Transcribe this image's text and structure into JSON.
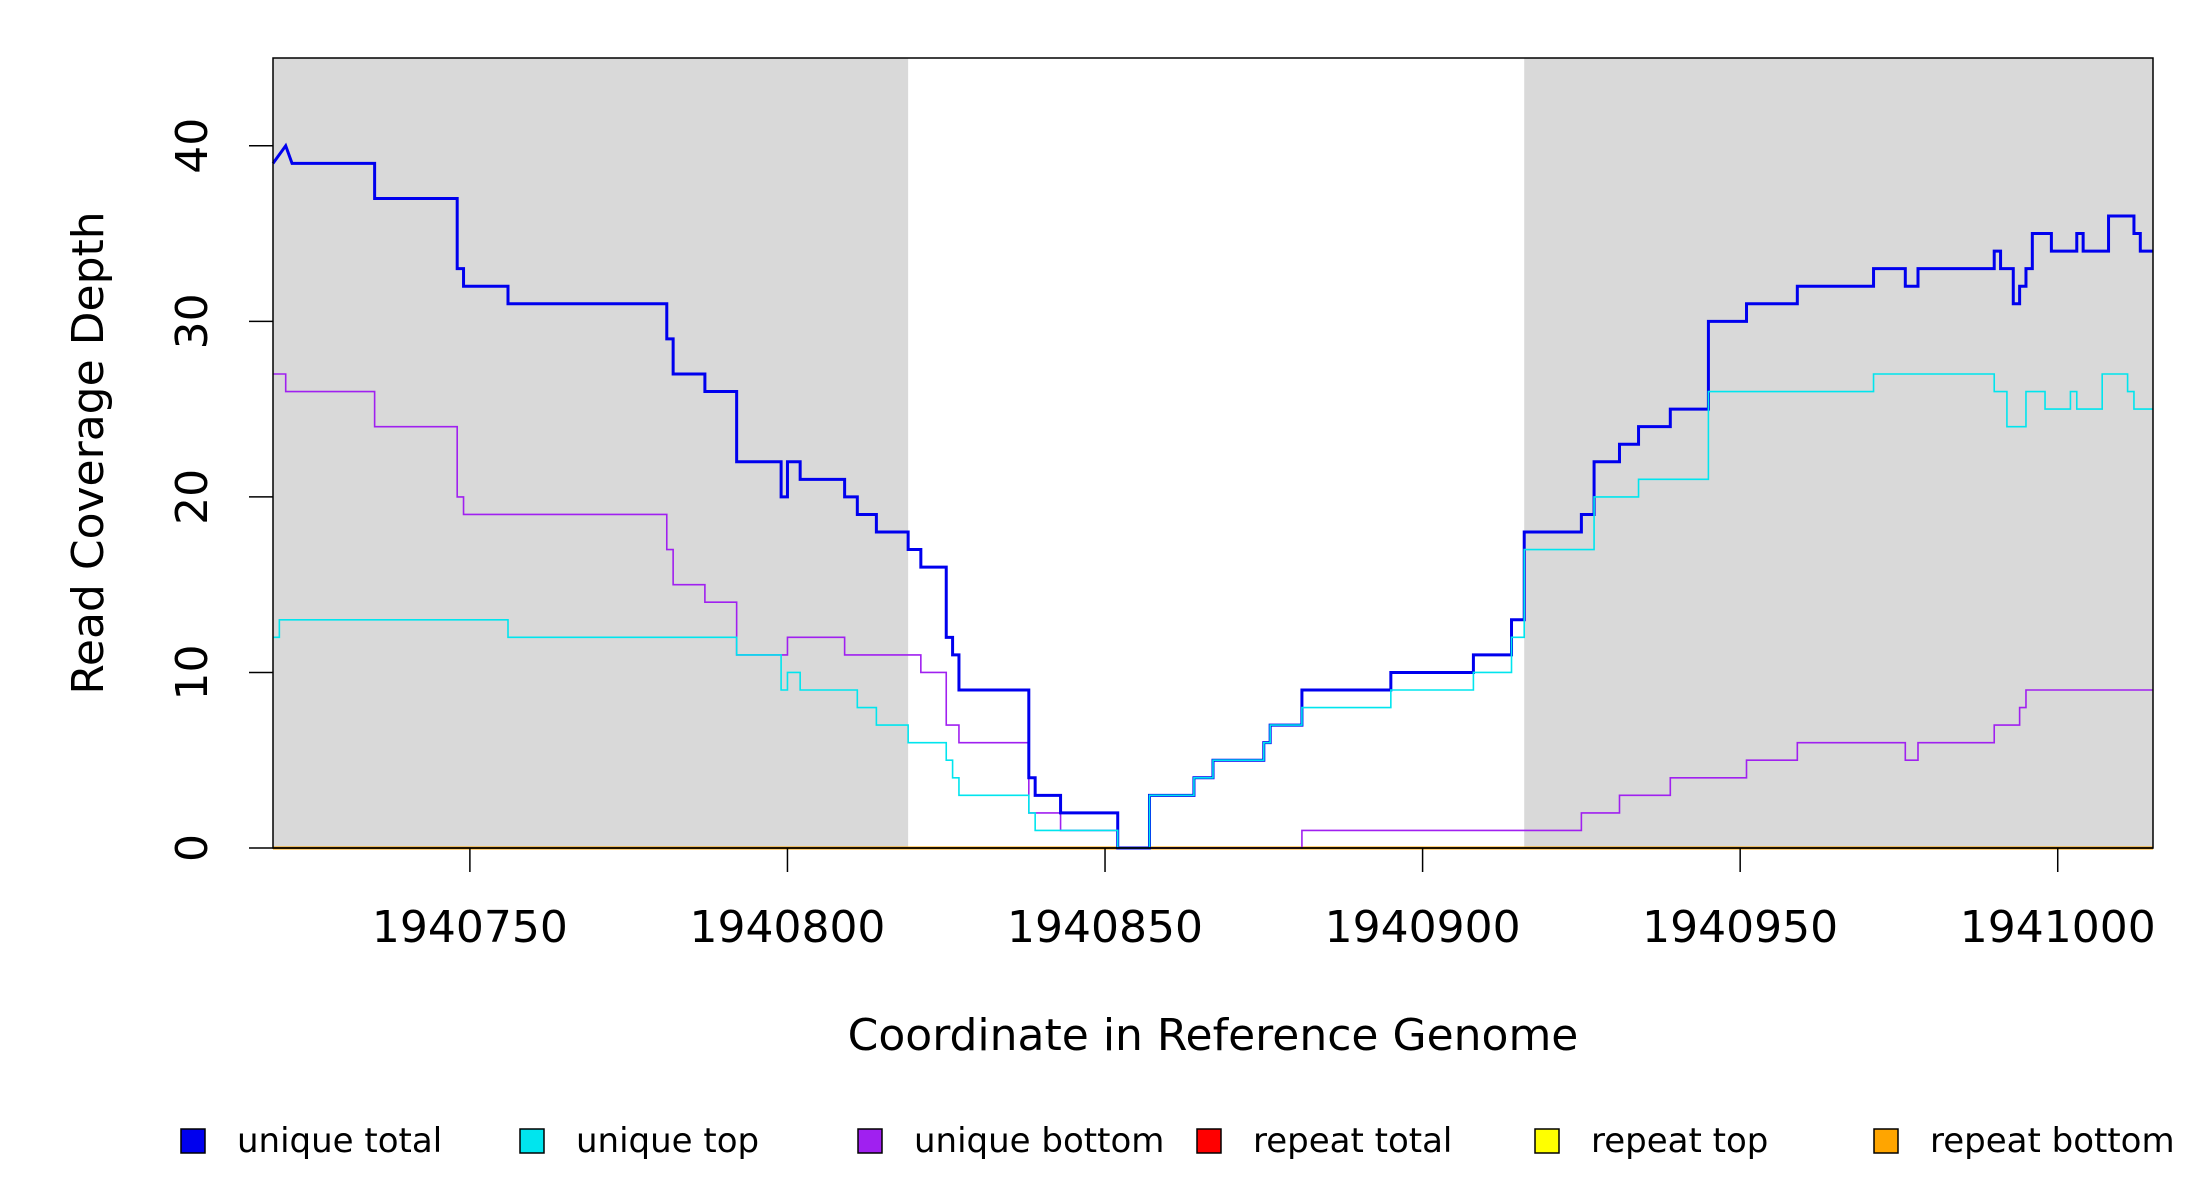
{
  "chart_data": {
    "type": "line",
    "title": "",
    "xlabel": "Coordinate in Reference Genome",
    "ylabel": "Read Coverage Depth",
    "xlim": [
      1940719,
      1941015
    ],
    "ylim": [
      0,
      45
    ],
    "x_ticks": [
      1940750,
      1940800,
      1940850,
      1940900,
      1940950,
      1941000
    ],
    "x_tick_labels": [
      "1940750",
      "1940800",
      "1940850",
      "1940900",
      "1940950",
      "1941000"
    ],
    "y_ticks": [
      0,
      10,
      20,
      30,
      40
    ],
    "y_tick_labels": [
      "0",
      "10",
      "20",
      "30",
      "40"
    ],
    "shaded_regions": [
      {
        "x": [
          1940719,
          1940819
        ],
        "color": "#d9d9d9"
      },
      {
        "x": [
          1940916,
          1941015
        ],
        "color": "#d9d9d9"
      }
    ],
    "grid": false,
    "legend_position": "bottom",
    "series": [
      {
        "name": "unique total",
        "color": "#0000ee",
        "points": [
          [
            1940719,
            39
          ],
          [
            1940721,
            40
          ],
          [
            1940721,
            40
          ],
          [
            1940722,
            39
          ],
          [
            1940735,
            39
          ],
          [
            1940735,
            37
          ],
          [
            1940748,
            37
          ],
          [
            1940748,
            33
          ],
          [
            1940749,
            33
          ],
          [
            1940749,
            32
          ],
          [
            1940756,
            32
          ],
          [
            1940756,
            31
          ],
          [
            1940781,
            31
          ],
          [
            1940781,
            29
          ],
          [
            1940782,
            29
          ],
          [
            1940782,
            27
          ],
          [
            1940787,
            27
          ],
          [
            1940787,
            26
          ],
          [
            1940792,
            26
          ],
          [
            1940792,
            22
          ],
          [
            1940799,
            22
          ],
          [
            1940799,
            20
          ],
          [
            1940800,
            20
          ],
          [
            1940800,
            22
          ],
          [
            1940802,
            22
          ],
          [
            1940802,
            21
          ],
          [
            1940809,
            21
          ],
          [
            1940809,
            20
          ],
          [
            1940811,
            20
          ],
          [
            1940811,
            19
          ],
          [
            1940814,
            19
          ],
          [
            1940814,
            18
          ],
          [
            1940819,
            18
          ],
          [
            1940819,
            17
          ],
          [
            1940821,
            17
          ],
          [
            1940821,
            16
          ],
          [
            1940825,
            16
          ],
          [
            1940825,
            12
          ],
          [
            1940826,
            12
          ],
          [
            1940826,
            11
          ],
          [
            1940827,
            11
          ],
          [
            1940827,
            9
          ],
          [
            1940838,
            9
          ],
          [
            1940838,
            4
          ],
          [
            1940839,
            4
          ],
          [
            1940839,
            3
          ],
          [
            1940843,
            3
          ],
          [
            1940843,
            2
          ],
          [
            1940852,
            2
          ],
          [
            1940852,
            0
          ],
          [
            1940857,
            0
          ],
          [
            1940857,
            3
          ],
          [
            1940864,
            3
          ],
          [
            1940864,
            4
          ],
          [
            1940867,
            4
          ],
          [
            1940867,
            5
          ],
          [
            1940875,
            5
          ],
          [
            1940875,
            6
          ],
          [
            1940876,
            6
          ],
          [
            1940876,
            7
          ],
          [
            1940881,
            7
          ],
          [
            1940881,
            9
          ],
          [
            1940895,
            9
          ],
          [
            1940895,
            10
          ],
          [
            1940908,
            10
          ],
          [
            1940908,
            11
          ],
          [
            1940914,
            11
          ],
          [
            1940914,
            13
          ],
          [
            1940916,
            13
          ],
          [
            1940916,
            18
          ],
          [
            1940925,
            18
          ],
          [
            1940925,
            19
          ],
          [
            1940927,
            19
          ],
          [
            1940927,
            22
          ],
          [
            1940931,
            22
          ],
          [
            1940931,
            23
          ],
          [
            1940934,
            23
          ],
          [
            1940934,
            24
          ],
          [
            1940939,
            24
          ],
          [
            1940939,
            25
          ],
          [
            1940945,
            25
          ],
          [
            1940945,
            30
          ],
          [
            1940951,
            30
          ],
          [
            1940951,
            31
          ],
          [
            1940959,
            31
          ],
          [
            1940959,
            32
          ],
          [
            1940971,
            32
          ],
          [
            1940971,
            33
          ],
          [
            1940976,
            33
          ],
          [
            1940976,
            32
          ],
          [
            1940978,
            32
          ],
          [
            1940978,
            33
          ],
          [
            1940990,
            33
          ],
          [
            1940990,
            34
          ],
          [
            1940991,
            34
          ],
          [
            1940991,
            33
          ],
          [
            1940993,
            33
          ],
          [
            1940993,
            31
          ],
          [
            1940994,
            31
          ],
          [
            1940994,
            32
          ],
          [
            1940995,
            32
          ],
          [
            1940995,
            33
          ],
          [
            1940996,
            33
          ],
          [
            1940996,
            35
          ],
          [
            1940999,
            35
          ],
          [
            1940999,
            34
          ],
          [
            1941003,
            34
          ],
          [
            1941003,
            35
          ],
          [
            1941004,
            35
          ],
          [
            1941004,
            34
          ],
          [
            1941008,
            34
          ],
          [
            1941008,
            36
          ],
          [
            1941012,
            36
          ],
          [
            1941012,
            35
          ],
          [
            1941013,
            35
          ],
          [
            1941013,
            34
          ],
          [
            1941015,
            34
          ]
        ]
      },
      {
        "name": "unique top",
        "color": "#00e5ee",
        "points": [
          [
            1940719,
            12
          ],
          [
            1940720,
            12
          ],
          [
            1940720,
            13
          ],
          [
            1940756,
            13
          ],
          [
            1940756,
            12
          ],
          [
            1940792,
            12
          ],
          [
            1940792,
            11
          ],
          [
            1940799,
            11
          ],
          [
            1940799,
            9
          ],
          [
            1940800,
            9
          ],
          [
            1940800,
            10
          ],
          [
            1940802,
            10
          ],
          [
            1940802,
            9
          ],
          [
            1940811,
            9
          ],
          [
            1940811,
            8
          ],
          [
            1940814,
            8
          ],
          [
            1940814,
            7
          ],
          [
            1940819,
            7
          ],
          [
            1940819,
            6
          ],
          [
            1940825,
            6
          ],
          [
            1940825,
            5
          ],
          [
            1940826,
            5
          ],
          [
            1940826,
            4
          ],
          [
            1940827,
            4
          ],
          [
            1940827,
            3
          ],
          [
            1940838,
            3
          ],
          [
            1940838,
            2
          ],
          [
            1940839,
            2
          ],
          [
            1940839,
            1
          ],
          [
            1940843,
            1
          ],
          [
            1940843,
            1
          ],
          [
            1940852,
            1
          ],
          [
            1940852,
            0
          ],
          [
            1940857,
            0
          ],
          [
            1940857,
            3
          ],
          [
            1940864,
            3
          ],
          [
            1940864,
            4
          ],
          [
            1940867,
            4
          ],
          [
            1940867,
            5
          ],
          [
            1940875,
            5
          ],
          [
            1940875,
            6
          ],
          [
            1940876,
            6
          ],
          [
            1940876,
            7
          ],
          [
            1940881,
            7
          ],
          [
            1940881,
            8
          ],
          [
            1940895,
            8
          ],
          [
            1940895,
            9
          ],
          [
            1940908,
            9
          ],
          [
            1940908,
            10
          ],
          [
            1940914,
            10
          ],
          [
            1940914,
            12
          ],
          [
            1940916,
            12
          ],
          [
            1940916,
            17
          ],
          [
            1940927,
            17
          ],
          [
            1940927,
            20
          ],
          [
            1940934,
            20
          ],
          [
            1940934,
            21
          ],
          [
            1940945,
            21
          ],
          [
            1940945,
            26
          ],
          [
            1940971,
            26
          ],
          [
            1940971,
            27
          ],
          [
            1940990,
            27
          ],
          [
            1940990,
            26
          ],
          [
            1940992,
            26
          ],
          [
            1940992,
            24
          ],
          [
            1940995,
            24
          ],
          [
            1940995,
            26
          ],
          [
            1940998,
            26
          ],
          [
            1940998,
            25
          ],
          [
            1941002,
            25
          ],
          [
            1941002,
            26
          ],
          [
            1941003,
            26
          ],
          [
            1941003,
            25
          ],
          [
            1941007,
            25
          ],
          [
            1941007,
            27
          ],
          [
            1941011,
            27
          ],
          [
            1941011,
            26
          ],
          [
            1941012,
            26
          ],
          [
            1941012,
            25
          ],
          [
            1941015,
            25
          ]
        ]
      },
      {
        "name": "unique bottom",
        "color": "#a020f0",
        "points": [
          [
            1940719,
            27
          ],
          [
            1940721,
            27
          ],
          [
            1940721,
            26
          ],
          [
            1940735,
            26
          ],
          [
            1940735,
            24
          ],
          [
            1940748,
            24
          ],
          [
            1940748,
            20
          ],
          [
            1940749,
            20
          ],
          [
            1940749,
            19
          ],
          [
            1940781,
            19
          ],
          [
            1940781,
            17
          ],
          [
            1940782,
            17
          ],
          [
            1940782,
            15
          ],
          [
            1940787,
            15
          ],
          [
            1940787,
            14
          ],
          [
            1940792,
            14
          ],
          [
            1940792,
            11
          ],
          [
            1940800,
            11
          ],
          [
            1940800,
            12
          ],
          [
            1940809,
            12
          ],
          [
            1940809,
            11
          ],
          [
            1940821,
            11
          ],
          [
            1940821,
            10
          ],
          [
            1940825,
            10
          ],
          [
            1940825,
            7
          ],
          [
            1940827,
            7
          ],
          [
            1940827,
            6
          ],
          [
            1940838,
            6
          ],
          [
            1940838,
            2
          ],
          [
            1940843,
            2
          ],
          [
            1940843,
            1
          ],
          [
            1940852,
            1
          ],
          [
            1940852,
            0
          ],
          [
            1940881,
            0
          ],
          [
            1940881,
            1
          ],
          [
            1940925,
            1
          ],
          [
            1940925,
            2
          ],
          [
            1940931,
            2
          ],
          [
            1940931,
            3
          ],
          [
            1940939,
            3
          ],
          [
            1940939,
            4
          ],
          [
            1940951,
            4
          ],
          [
            1940951,
            5
          ],
          [
            1940959,
            5
          ],
          [
            1940959,
            6
          ],
          [
            1940976,
            6
          ],
          [
            1940976,
            5
          ],
          [
            1940978,
            5
          ],
          [
            1940978,
            6
          ],
          [
            1940990,
            6
          ],
          [
            1940990,
            7
          ],
          [
            1940994,
            7
          ],
          [
            1940994,
            8
          ],
          [
            1940995,
            8
          ],
          [
            1940995,
            9
          ],
          [
            1941015,
            9
          ]
        ]
      },
      {
        "name": "repeat total",
        "color": "#ff0000",
        "points": [
          [
            1940719,
            0
          ],
          [
            1941015,
            0
          ]
        ]
      },
      {
        "name": "repeat top",
        "color": "#ffff00",
        "points": [
          [
            1940719,
            0
          ],
          [
            1941015,
            0
          ]
        ]
      },
      {
        "name": "repeat bottom",
        "color": "#ffa500",
        "points": [
          [
            1940719,
            0
          ],
          [
            1941015,
            0
          ]
        ]
      }
    ]
  }
}
